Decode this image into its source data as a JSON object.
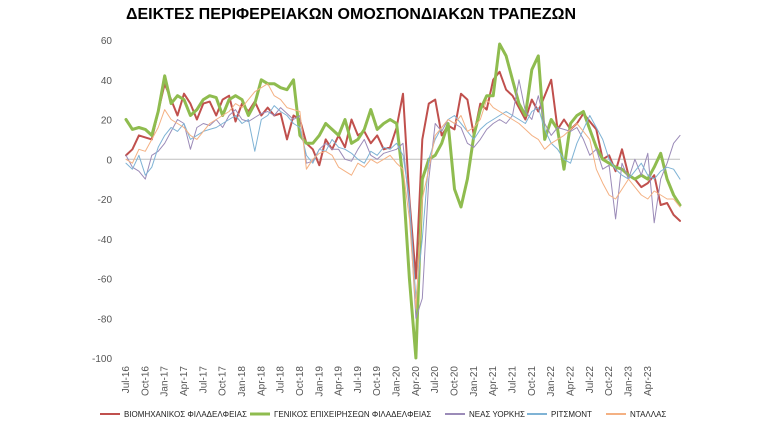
{
  "chart_data": {
    "type": "line",
    "title": "ΔΕΙΚΤΕΣ ΠΕΡΙΦΕΡΕΙΑΚΩΝ ΟΜΟΣΠΟΝΔΙΑΚΩΝ ΤΡΑΠΕΖΩΝ",
    "xlabel": "",
    "ylabel": "",
    "ylim": [
      -100,
      60
    ],
    "yticks": [
      -100,
      -80,
      -60,
      -40,
      -20,
      0,
      20,
      40,
      60
    ],
    "grid": false,
    "legend_position": "bottom",
    "x_start": "Jul-16",
    "x_tick_labels": [
      "Jul-16",
      "Oct-16",
      "Jan-17",
      "Apr-17",
      "Jul-17",
      "Oct-17",
      "Jan-18",
      "Apr-18",
      "Jul-18",
      "Oct-18",
      "Jan-19",
      "Apr-19",
      "Jul-19",
      "Oct-19",
      "Jan-20",
      "Apr-20",
      "Jul-20",
      "Oct-20",
      "Jan-21",
      "Apr-21",
      "Jul-21",
      "Oct-21",
      "Jan-22",
      "Apr-22",
      "Jul-22",
      "Oct-22",
      "Jan-23",
      "Apr-23"
    ],
    "series": [
      {
        "name": "ΒΙΟΜΗΧΑΝΙΚΟΣ ΦΙΛΑΔΕΛΦΕΙΑΣ",
        "color": "#c0504d",
        "width": 2,
        "values": [
          2,
          5,
          12,
          11,
          10,
          24,
          38,
          30,
          22,
          33,
          28,
          20,
          28,
          29,
          22,
          30,
          32,
          19,
          28,
          24,
          29,
          22,
          26,
          22,
          23,
          10,
          22,
          20,
          8,
          5,
          -3,
          10,
          5,
          12,
          6,
          20,
          12,
          14,
          8,
          12,
          5,
          6,
          16,
          33,
          -20,
          -60,
          10,
          28,
          30,
          12,
          17,
          15,
          33,
          30,
          12,
          28,
          25,
          40,
          44,
          35,
          32,
          26,
          20,
          30,
          24,
          32,
          40,
          15,
          20,
          15,
          18,
          23,
          19,
          15,
          0,
          2,
          -6,
          5,
          -8,
          -10,
          -14,
          -12,
          -8,
          -23,
          -22,
          -28,
          -31
        ]
      },
      {
        "name": "ΓΕΝΙΚΟΣ ΕΠΙΧΕΙΡΗΣΕΩΝ ΦΙΛΑΔΕΛΦΕΙΑΣ",
        "color": "#8fbc4f",
        "width": 3,
        "values": [
          20,
          15,
          16,
          15,
          12,
          24,
          42,
          28,
          32,
          30,
          22,
          25,
          30,
          32,
          31,
          22,
          30,
          32,
          30,
          22,
          28,
          40,
          38,
          38,
          36,
          35,
          40,
          12,
          8,
          8,
          12,
          18,
          15,
          12,
          20,
          8,
          10,
          15,
          25,
          15,
          18,
          20,
          18,
          -10,
          -60,
          -100,
          -10,
          0,
          2,
          8,
          18,
          -15,
          -24,
          -10,
          12,
          25,
          32,
          32,
          58,
          52,
          40,
          28,
          22,
          45,
          52,
          10,
          20,
          15,
          -5,
          18,
          22,
          24,
          15,
          6,
          0,
          -2,
          -4,
          -5,
          -8,
          -10,
          -8,
          -10,
          -4,
          3,
          -10,
          -18,
          -23
        ]
      },
      {
        "name": "ΝΕΑΣ ΥΟΡΚΗΣ",
        "color": "#9b8bb8",
        "width": 1,
        "values": [
          2,
          -4,
          -6,
          -10,
          2,
          4,
          8,
          14,
          20,
          18,
          5,
          16,
          18,
          17,
          20,
          16,
          22,
          25,
          20,
          19,
          21,
          23,
          24,
          22,
          26,
          23,
          20,
          22,
          -2,
          -1,
          5,
          8,
          5,
          5,
          0,
          -1,
          5,
          10,
          2,
          0,
          3,
          4,
          5,
          8,
          -25,
          -80,
          -70,
          -10,
          18,
          14,
          20,
          18,
          16,
          8,
          6,
          10,
          15,
          18,
          20,
          18,
          22,
          40,
          24,
          20,
          32,
          18,
          12,
          16,
          15,
          14,
          16,
          10,
          2,
          5,
          -5,
          -3,
          -30,
          -2,
          -10,
          0,
          -8,
          3,
          -32,
          -10,
          -2,
          8,
          12
        ]
      },
      {
        "name": "ΡΙΤΣΜΟΝΤ",
        "color": "#7fb3d5",
        "width": 1,
        "values": [
          -2,
          -5,
          2,
          -8,
          -4,
          6,
          12,
          16,
          14,
          18,
          10,
          12,
          14,
          15,
          16,
          18,
          20,
          22,
          18,
          20,
          4,
          20,
          22,
          27,
          24,
          22,
          18,
          16,
          2,
          -2,
          5,
          4,
          10,
          6,
          5,
          3,
          0,
          -2,
          4,
          2,
          6,
          5,
          8,
          2,
          -20,
          -70,
          -40,
          0,
          10,
          16,
          20,
          22,
          18,
          14,
          10,
          15,
          18,
          20,
          22,
          24,
          22,
          20,
          18,
          24,
          26,
          15,
          8,
          5,
          0,
          -2,
          8,
          15,
          22,
          16,
          10,
          0,
          -5,
          -8,
          -10,
          -6,
          -2,
          -8,
          -10,
          -6,
          -4,
          -5,
          -10
        ]
      },
      {
        "name": "ΝΤΑΛΛΑΣ",
        "color": "#f4b183",
        "width": 1,
        "values": [
          0,
          -2,
          5,
          4,
          10,
          16,
          25,
          20,
          18,
          16,
          12,
          10,
          14,
          18,
          20,
          22,
          24,
          28,
          26,
          30,
          34,
          36,
          38,
          32,
          30,
          26,
          25,
          24,
          -5,
          0,
          3,
          4,
          2,
          -4,
          -6,
          -8,
          -2,
          -4,
          0,
          -2,
          0,
          2,
          -2,
          -5,
          -30,
          -75,
          -20,
          -5,
          12,
          16,
          20,
          18,
          22,
          14,
          16,
          20,
          30,
          26,
          24,
          22,
          20,
          18,
          15,
          12,
          10,
          5,
          8,
          10,
          12,
          15,
          18,
          14,
          10,
          -5,
          -12,
          -18,
          -20,
          -15,
          -10,
          -14,
          -18,
          -20,
          -16,
          -18,
          -20,
          -20,
          -24
        ]
      }
    ]
  }
}
